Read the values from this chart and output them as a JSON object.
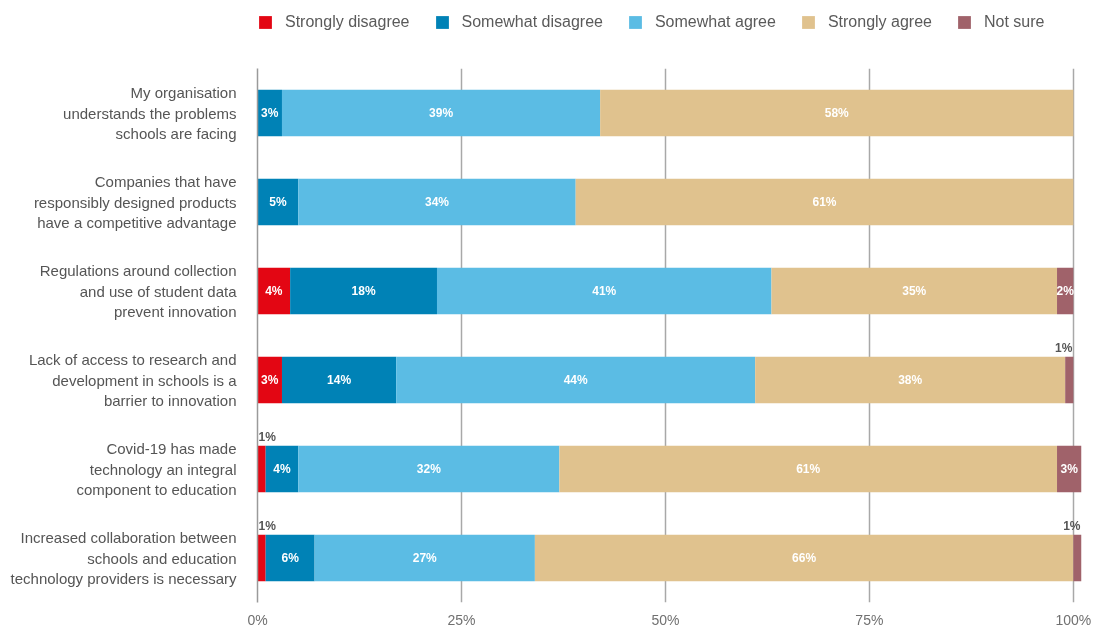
{
  "chart_data": {
    "type": "bar",
    "orientation": "horizontal",
    "stacked": true,
    "categories": [
      "My organisation\nunderstands the problems\nschools are facing",
      "Companies that have\nresponsibly designed products\nhave a competitive advantage",
      "Regulations around collection\nand use of student data\nprevent innovation",
      "Lack of access to research and\ndevelopment in schools is a\nbarrier to innovation",
      "Covid-19 has made\ntechnology an integral\ncomponent to education",
      "Increased collaboration between\nschools and education\ntechnology providers is necessary"
    ],
    "series": [
      {
        "name": "Strongly disagree",
        "color": "#e30613",
        "values": [
          null,
          null,
          4,
          3,
          1,
          1
        ],
        "value_labels": [
          null,
          null,
          "4%",
          "3%",
          "1%",
          "1%"
        ]
      },
      {
        "name": "Somewhat disagree",
        "color": "#0082b6",
        "values": [
          3,
          5,
          18,
          14,
          4,
          6
        ],
        "value_labels": [
          "3%",
          "5%",
          "18%",
          "14%",
          "4%",
          "6%"
        ]
      },
      {
        "name": "Somewhat agree",
        "color": "#5bbce4",
        "values": [
          39,
          34,
          41,
          44,
          32,
          27
        ],
        "value_labels": [
          "39%",
          "34%",
          "41%",
          "44%",
          "32%",
          "27%"
        ]
      },
      {
        "name": "Strongly agree",
        "color": "#e0c28e",
        "values": [
          58,
          61,
          35,
          38,
          61,
          66
        ],
        "value_labels": [
          "58%",
          "61%",
          "35%",
          "38%",
          "61%",
          "66%"
        ]
      },
      {
        "name": "Not sure",
        "color": "#a0626a",
        "values": [
          null,
          null,
          2,
          1,
          3,
          1
        ],
        "value_labels": [
          null,
          null,
          "2%",
          "1%",
          "3%",
          "1%"
        ]
      }
    ],
    "xlim": [
      0,
      101
    ],
    "xticks": [
      {
        "value": 0,
        "label": "0%"
      },
      {
        "value": 25,
        "label": "25%"
      },
      {
        "value": 50,
        "label": "50%"
      },
      {
        "value": 75,
        "label": "75%"
      },
      {
        "value": 100,
        "label": "100%"
      }
    ],
    "grid": "x",
    "legend": "top left"
  }
}
